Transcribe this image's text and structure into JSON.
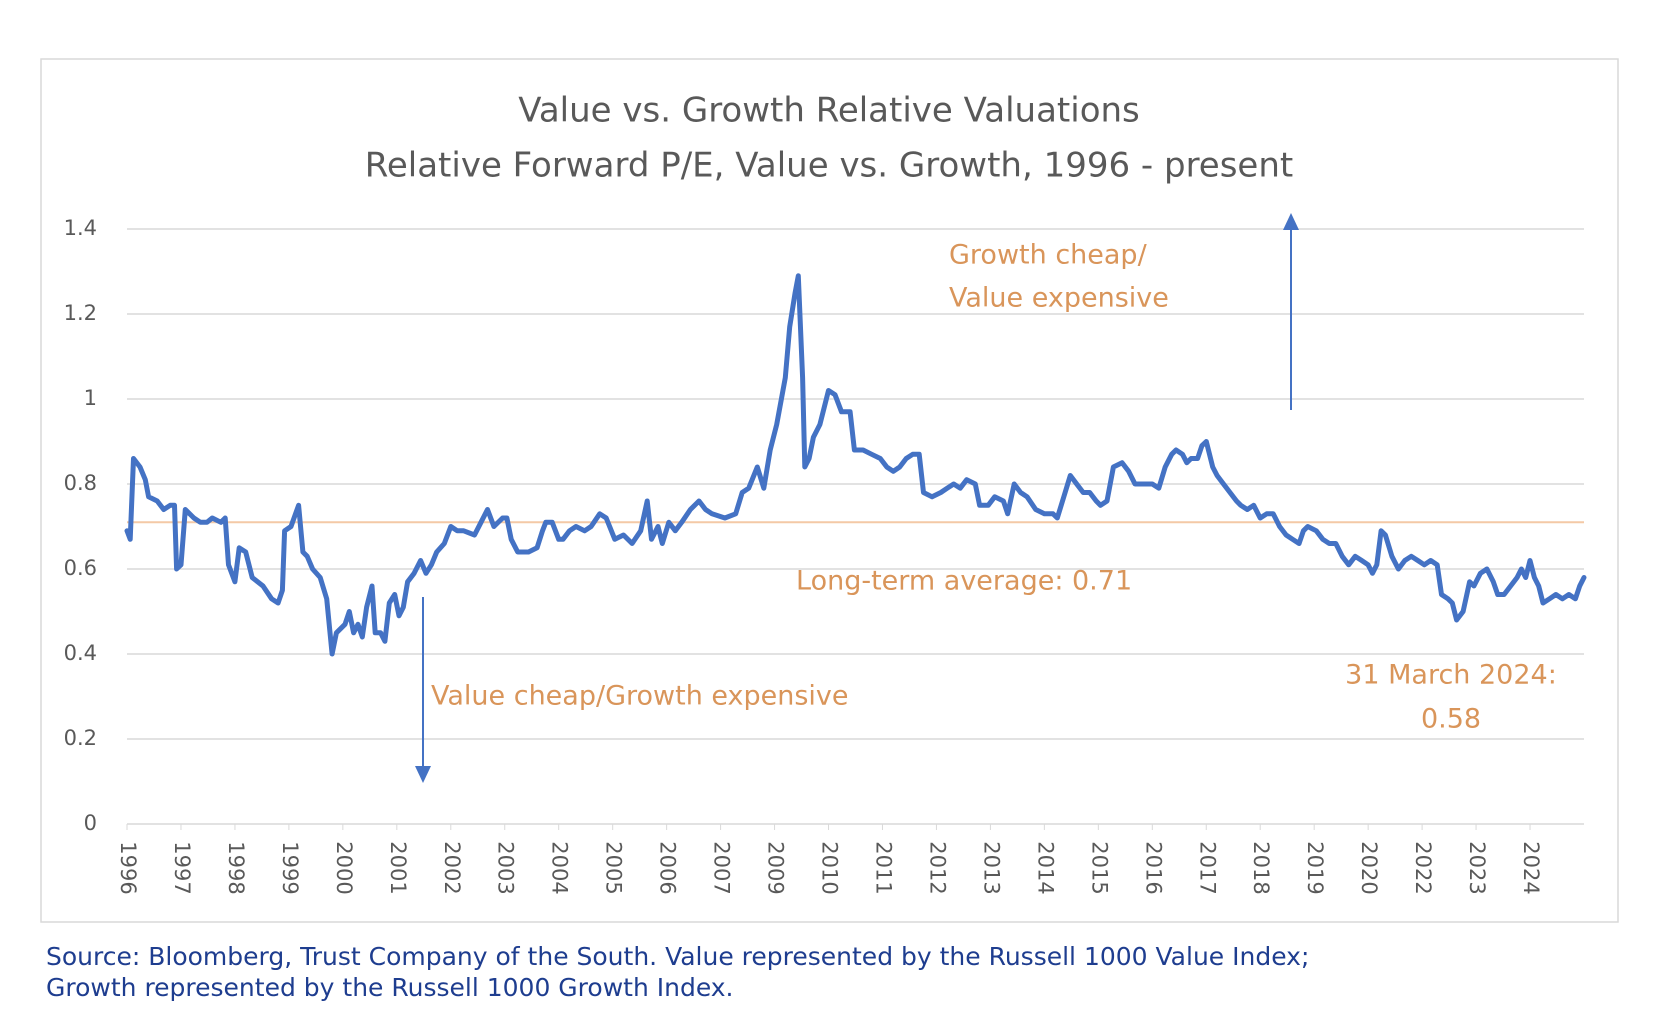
{
  "chart_data": {
    "type": "line",
    "title": "Value vs. Growth Relative Valuations",
    "subtitle": "Relative Forward P/E, Value vs. Growth, 1996 - present",
    "xlim": [
      0,
      27
    ],
    "xticks": [
      {
        "value": 0,
        "label": "1996"
      },
      {
        "value": 1,
        "label": "1997"
      },
      {
        "value": 2,
        "label": "1998"
      },
      {
        "value": 3,
        "label": "1999"
      },
      {
        "value": 4,
        "label": "2000"
      },
      {
        "value": 5,
        "label": "2001"
      },
      {
        "value": 6,
        "label": "2002"
      },
      {
        "value": 7,
        "label": "2003"
      },
      {
        "value": 8,
        "label": "2004"
      },
      {
        "value": 9,
        "label": "2005"
      },
      {
        "value": 10,
        "label": "2006"
      },
      {
        "value": 11,
        "label": "2007"
      },
      {
        "value": 12,
        "label": "2009"
      },
      {
        "value": 13,
        "label": "2010"
      },
      {
        "value": 14,
        "label": "2011"
      },
      {
        "value": 15,
        "label": "2012"
      },
      {
        "value": 16,
        "label": "2013"
      },
      {
        "value": 17,
        "label": "2014"
      },
      {
        "value": 18,
        "label": "2015"
      },
      {
        "value": 19,
        "label": "2016"
      },
      {
        "value": 20,
        "label": "2017"
      },
      {
        "value": 21,
        "label": "2018"
      },
      {
        "value": 22,
        "label": "2019"
      },
      {
        "value": 23,
        "label": "2020"
      },
      {
        "value": 24,
        "label": "2022"
      },
      {
        "value": 25,
        "label": "2023"
      },
      {
        "value": 26,
        "label": "2024"
      }
    ],
    "ylim": [
      0,
      1.4
    ],
    "yticks": [
      0,
      0.2,
      0.4,
      0.6,
      0.8,
      1,
      1.2,
      1.4
    ],
    "grid": true,
    "average": 0.71,
    "average_color": "#f4c9a6",
    "annotation_color": "#d9955a",
    "annotations": {
      "growth_cheap": [
        "Growth cheap/",
        "Value expensive"
      ],
      "average": "Long-term average: 0.71",
      "value_cheap": "Value cheap/Growth expensive",
      "latest": [
        "31 March 2024:",
        "0.58"
      ]
    },
    "series": [
      {
        "color": "#4472c4",
        "x": [
          0,
          0.06,
          0.12,
          0.24,
          0.34,
          0.4,
          0.56,
          0.68,
          0.8,
          0.88,
          0.92,
          1.0,
          1.08,
          1.24,
          1.36,
          1.48,
          1.58,
          1.74,
          1.82,
          1.88,
          2.0,
          2.08,
          2.2,
          2.32,
          2.52,
          2.68,
          2.8,
          2.88,
          2.92,
          3.04,
          3.18,
          3.26,
          3.34,
          3.44,
          3.58,
          3.7,
          3.8,
          3.88,
          4.04,
          4.12,
          4.2,
          4.28,
          4.36,
          4.44,
          4.54,
          4.6,
          4.7,
          4.78,
          4.86,
          4.96,
          5.04,
          5.12,
          5.2,
          5.32,
          5.44,
          5.54,
          5.64,
          5.74,
          5.88,
          6.0,
          6.12,
          6.24,
          6.44,
          6.56,
          6.68,
          6.8,
          6.96,
          7.04,
          7.12,
          7.24,
          7.44,
          7.6,
          7.7,
          7.76,
          7.88,
          8.0,
          8.08,
          8.2,
          8.32,
          8.48,
          8.6,
          8.76,
          8.88,
          9.04,
          9.2,
          9.36,
          9.52,
          9.64,
          9.72,
          9.84,
          9.92,
          10.04,
          10.16,
          10.28,
          10.44,
          10.6,
          10.72,
          10.84,
          11.08,
          11.28,
          11.4,
          11.52,
          11.68,
          11.8,
          11.92,
          12.04,
          12.2,
          12.28,
          12.38,
          12.44,
          12.52,
          12.56,
          12.64,
          12.72,
          12.84,
          12.92,
          13.0,
          13.12,
          13.24,
          13.4,
          13.48,
          13.64,
          13.8,
          13.96,
          14.08,
          14.2,
          14.32,
          14.44,
          14.56,
          14.68,
          14.76,
          14.92,
          15.08,
          15.2,
          15.32,
          15.44,
          15.56,
          15.72,
          15.8,
          15.96,
          16.08,
          16.24,
          16.32,
          16.44,
          16.56,
          16.68,
          16.84,
          17.0,
          17.16,
          17.24,
          17.36,
          17.48,
          17.6,
          17.72,
          17.84,
          17.96,
          18.04,
          18.16,
          18.28,
          18.44,
          18.56,
          18.68,
          18.84,
          19.0,
          19.12,
          19.24,
          19.36,
          19.44,
          19.56,
          19.64,
          19.72,
          19.84,
          19.92,
          20.0,
          20.12,
          20.2,
          20.32,
          20.44,
          20.56,
          20.64,
          20.76,
          20.88,
          21.0,
          21.12,
          21.24,
          21.36,
          21.48,
          21.6,
          21.72,
          21.8,
          21.88,
          22.04,
          22.16,
          22.28,
          22.4,
          22.52,
          22.64,
          22.76,
          22.88,
          23.0,
          23.08,
          23.16,
          23.24,
          23.32,
          23.44,
          23.56,
          23.68,
          23.8,
          23.92,
          24.04,
          24.16,
          24.28,
          24.36,
          24.48,
          24.56,
          24.64,
          24.76,
          24.88,
          24.96,
          25.08,
          25.2,
          25.32,
          25.4,
          25.52,
          25.64,
          25.76,
          25.84,
          25.92,
          26.0,
          26.08,
          26.16,
          26.24,
          26.36,
          26.48,
          26.6,
          26.72,
          26.84,
          26.92,
          27.0
        ],
        "values": [
          0.69,
          0.67,
          0.86,
          0.84,
          0.81,
          0.77,
          0.76,
          0.74,
          0.75,
          0.75,
          0.6,
          0.61,
          0.74,
          0.72,
          0.71,
          0.71,
          0.72,
          0.71,
          0.72,
          0.61,
          0.57,
          0.65,
          0.64,
          0.58,
          0.56,
          0.53,
          0.52,
          0.55,
          0.69,
          0.7,
          0.75,
          0.64,
          0.63,
          0.6,
          0.58,
          0.53,
          0.4,
          0.45,
          0.47,
          0.5,
          0.45,
          0.47,
          0.44,
          0.51,
          0.56,
          0.45,
          0.45,
          0.43,
          0.52,
          0.54,
          0.49,
          0.51,
          0.57,
          0.59,
          0.62,
          0.59,
          0.61,
          0.64,
          0.66,
          0.7,
          0.69,
          0.69,
          0.68,
          0.71,
          0.74,
          0.7,
          0.72,
          0.72,
          0.67,
          0.64,
          0.64,
          0.65,
          0.69,
          0.71,
          0.71,
          0.67,
          0.67,
          0.69,
          0.7,
          0.69,
          0.7,
          0.73,
          0.72,
          0.67,
          0.68,
          0.66,
          0.69,
          0.76,
          0.67,
          0.7,
          0.66,
          0.71,
          0.69,
          0.71,
          0.74,
          0.76,
          0.74,
          0.73,
          0.72,
          0.73,
          0.78,
          0.79,
          0.84,
          0.79,
          0.88,
          0.94,
          1.05,
          1.17,
          1.25,
          1.29,
          1.05,
          0.84,
          0.86,
          0.91,
          0.94,
          0.98,
          1.02,
          1.01,
          0.97,
          0.97,
          0.88,
          0.88,
          0.87,
          0.86,
          0.84,
          0.83,
          0.84,
          0.86,
          0.87,
          0.87,
          0.78,
          0.77,
          0.78,
          0.79,
          0.8,
          0.79,
          0.81,
          0.8,
          0.75,
          0.75,
          0.77,
          0.76,
          0.73,
          0.8,
          0.78,
          0.77,
          0.74,
          0.73,
          0.73,
          0.72,
          0.77,
          0.82,
          0.8,
          0.78,
          0.78,
          0.76,
          0.75,
          0.76,
          0.84,
          0.85,
          0.83,
          0.8,
          0.8,
          0.8,
          0.79,
          0.84,
          0.87,
          0.88,
          0.87,
          0.85,
          0.86,
          0.86,
          0.89,
          0.9,
          0.84,
          0.82,
          0.8,
          0.78,
          0.76,
          0.75,
          0.74,
          0.75,
          0.72,
          0.73,
          0.73,
          0.7,
          0.68,
          0.67,
          0.66,
          0.69,
          0.7,
          0.69,
          0.67,
          0.66,
          0.66,
          0.63,
          0.61,
          0.63,
          0.62,
          0.61,
          0.59,
          0.61,
          0.69,
          0.68,
          0.63,
          0.6,
          0.62,
          0.63,
          0.62,
          0.61,
          0.62,
          0.61,
          0.54,
          0.53,
          0.52,
          0.48,
          0.5,
          0.57,
          0.56,
          0.59,
          0.6,
          0.57,
          0.54,
          0.54,
          0.56,
          0.58,
          0.6,
          0.58,
          0.62,
          0.58,
          0.56,
          0.52,
          0.53,
          0.54,
          0.53,
          0.54,
          0.53,
          0.56,
          0.58
        ]
      }
    ]
  },
  "source": [
    "Source: Bloomberg, Trust Company of the South. Value represented by the Russell 1000 Value Index;",
    "Growth represented by the Russell 1000 Growth Index."
  ]
}
